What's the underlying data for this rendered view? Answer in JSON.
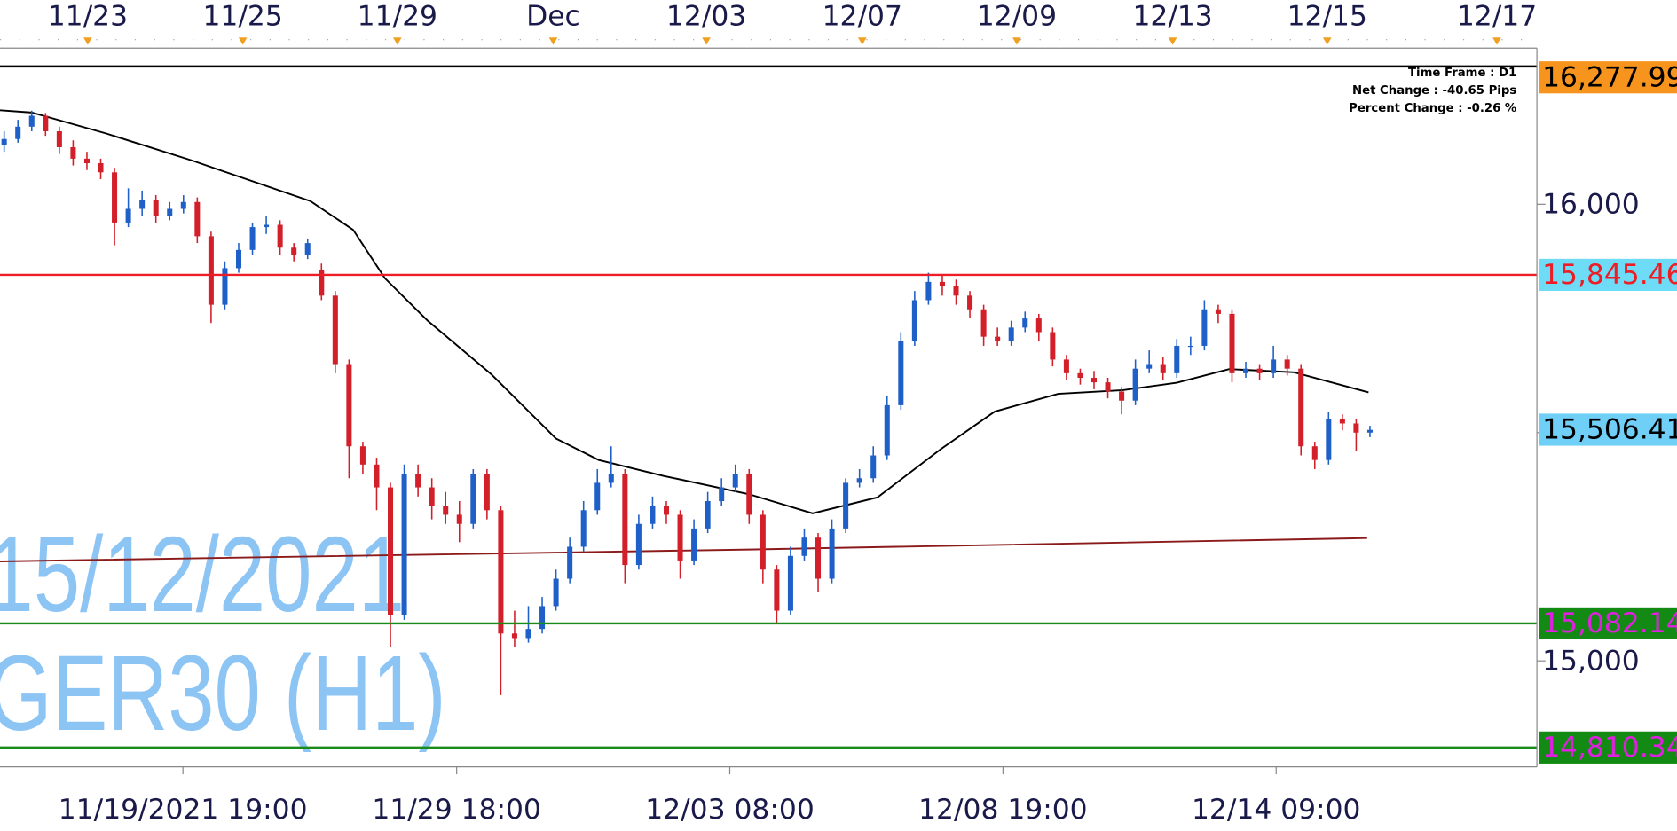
{
  "chart_data": {
    "type": "candlestick",
    "annotations": [
      "Time Frame : D1",
      "Net Change : -40.65 Pips",
      "Percent Change : -0.26 %"
    ],
    "watermark": [
      "15/12/2021",
      "GER30 (H1)"
    ],
    "up_color": "#1f5fc8",
    "down_color": "#d21f2a",
    "xlim": [
      -0.3,
      111.1
    ],
    "ylim": [
      14768,
      16342
    ],
    "yticks": [
      {
        "value": 15000,
        "label": "15,000"
      },
      {
        "value": 15500,
        "label": null
      },
      {
        "value": 16000,
        "label": "16,000"
      }
    ],
    "grid": true,
    "xticks": [
      {
        "value": 12.96,
        "label": "11/19/2021 19:00"
      },
      {
        "value": 32.8,
        "label": "11/29 18:00"
      },
      {
        "value": 52.6,
        "label": "12/03 08:00"
      },
      {
        "value": 72.4,
        "label": "12/08 19:00"
      },
      {
        "value": 92.2,
        "label": "12/14 09:00"
      }
    ],
    "top_xticks": [
      {
        "value": 6.06,
        "label": "11/23"
      },
      {
        "value": 17.3,
        "label": "11/25"
      },
      {
        "value": 28.5,
        "label": "11/29"
      },
      {
        "value": 39.8,
        "label": "Dec"
      },
      {
        "value": 50.9,
        "label": "12/03"
      },
      {
        "value": 62.2,
        "label": "12/07"
      },
      {
        "value": 73.4,
        "label": "12/09"
      },
      {
        "value": 84.7,
        "label": "12/13"
      },
      {
        "value": 95.9,
        "label": "12/15"
      },
      {
        "value": 108.2,
        "label": "12/17"
      }
    ],
    "levels": [
      {
        "value": 16302,
        "line_color": "#000000"
      },
      {
        "value": 16277.99,
        "label": "16,277.99",
        "label_bg": "#f7941d",
        "label_color": "#000000"
      },
      {
        "value": 15845.46,
        "label": "15,845.46",
        "line_color": "#ee1c24",
        "label_bg": "#6fdcf7",
        "label_color": "#ee1c24"
      },
      {
        "value": 15506.41,
        "label": "15,506.41",
        "label_bg": "#6fcff7",
        "label_color": "#000000"
      },
      {
        "value": 15082.14,
        "label": "15,082.14",
        "line_color": "#1a8a1a",
        "label_bg": "#138a13",
        "label_color": "#e020e0"
      },
      {
        "value": 14810.34,
        "label": "14,810.34",
        "line_color": "#1a8a1a",
        "label_bg": "#138a13",
        "label_color": "#e020e0"
      }
    ],
    "series": [
      {
        "color": "#000000",
        "x": [
          -0.3,
          2,
          7.4,
          13.6,
          22.2,
          25.3,
          27.6,
          30.7,
          35.3,
          40,
          43.1,
          47.8,
          54,
          58.6,
          63.3,
          67.9,
          71.8,
          76.4,
          81.1,
          85,
          88.8,
          93.5,
          98.9
        ],
        "values": [
          16206,
          16201,
          16155,
          16096,
          16007,
          15944,
          15838,
          15745,
          15628,
          15487,
          15440,
          15405,
          15365,
          15323,
          15358,
          15464,
          15546,
          15585,
          15593,
          15609,
          15639,
          15632,
          15588
        ]
      },
      {
        "color": "#8b1a1a",
        "x": [
          -0.3,
          54,
          98.8
        ],
        "values": [
          15218,
          15244,
          15269
        ]
      }
    ],
    "ohlc": [
      [
        16130,
        16160,
        16115,
        16143
      ],
      [
        16143,
        16185,
        16135,
        16170
      ],
      [
        16170,
        16205,
        16160,
        16194
      ],
      [
        16194,
        16200,
        16150,
        16160
      ],
      [
        16160,
        16170,
        16110,
        16125
      ],
      [
        16125,
        16140,
        16085,
        16100
      ],
      [
        16100,
        16115,
        16075,
        16090
      ],
      [
        16090,
        16100,
        16055,
        16070
      ],
      [
        16070,
        16080,
        15910,
        15960
      ],
      [
        15960,
        16035,
        15950,
        15990
      ],
      [
        15990,
        16030,
        15975,
        16010
      ],
      [
        16010,
        16020,
        15960,
        15975
      ],
      [
        15975,
        16005,
        15965,
        15990
      ],
      [
        15990,
        16020,
        15980,
        16005
      ],
      [
        16005,
        16015,
        15915,
        15930
      ],
      [
        15930,
        15940,
        15740,
        15780
      ],
      [
        15780,
        15875,
        15770,
        15860
      ],
      [
        15860,
        15915,
        15850,
        15900
      ],
      [
        15900,
        15960,
        15890,
        15950
      ],
      [
        15950,
        15975,
        15935,
        15955
      ],
      [
        15955,
        15965,
        15890,
        15905
      ],
      [
        15905,
        15915,
        15875,
        15890
      ],
      [
        15890,
        15925,
        15880,
        15915
      ],
      [
        15855,
        15870,
        15790,
        15800
      ],
      [
        15800,
        15810,
        15630,
        15650
      ],
      [
        15650,
        15660,
        15400,
        15470
      ],
      [
        15470,
        15480,
        15410,
        15430
      ],
      [
        15430,
        15445,
        15330,
        15380
      ],
      [
        15380,
        15390,
        15030,
        15100
      ],
      [
        15100,
        15430,
        15090,
        15410
      ],
      [
        15410,
        15430,
        15360,
        15380
      ],
      [
        15380,
        15400,
        15310,
        15340
      ],
      [
        15340,
        15370,
        15300,
        15320
      ],
      [
        15320,
        15350,
        15260,
        15300
      ],
      [
        15300,
        15420,
        15290,
        15410
      ],
      [
        15410,
        15420,
        15310,
        15330
      ],
      [
        15330,
        15340,
        14925,
        15060
      ],
      [
        15060,
        15110,
        15030,
        15050
      ],
      [
        15050,
        15120,
        15040,
        15070
      ],
      [
        15070,
        15140,
        15060,
        15120
      ],
      [
        15120,
        15200,
        15110,
        15180
      ],
      [
        15180,
        15270,
        15170,
        15250
      ],
      [
        15250,
        15350,
        15240,
        15330
      ],
      [
        15330,
        15420,
        15320,
        15390
      ],
      [
        15390,
        15470,
        15380,
        15410
      ],
      [
        15410,
        15420,
        15170,
        15210
      ],
      [
        15210,
        15320,
        15200,
        15300
      ],
      [
        15300,
        15360,
        15290,
        15340
      ],
      [
        15340,
        15350,
        15300,
        15320
      ],
      [
        15320,
        15330,
        15180,
        15220
      ],
      [
        15220,
        15310,
        15210,
        15290
      ],
      [
        15290,
        15370,
        15280,
        15350
      ],
      [
        15350,
        15400,
        15340,
        15380
      ],
      [
        15380,
        15430,
        15370,
        15410
      ],
      [
        15410,
        15420,
        15300,
        15320
      ],
      [
        15320,
        15330,
        15170,
        15200
      ],
      [
        15200,
        15210,
        15080,
        15110
      ],
      [
        15110,
        15250,
        15100,
        15230
      ],
      [
        15230,
        15290,
        15220,
        15270
      ],
      [
        15270,
        15280,
        15150,
        15180
      ],
      [
        15180,
        15310,
        15170,
        15290
      ],
      [
        15290,
        15400,
        15280,
        15390
      ],
      [
        15390,
        15420,
        15380,
        15400
      ],
      [
        15400,
        15470,
        15390,
        15450
      ],
      [
        15450,
        15580,
        15440,
        15560
      ],
      [
        15560,
        15720,
        15550,
        15700
      ],
      [
        15700,
        15810,
        15690,
        15790
      ],
      [
        15790,
        15850,
        15780,
        15830
      ],
      [
        15830,
        15845,
        15800,
        15820
      ],
      [
        15820,
        15835,
        15780,
        15800
      ],
      [
        15800,
        15810,
        15750,
        15770
      ],
      [
        15770,
        15780,
        15690,
        15710
      ],
      [
        15710,
        15730,
        15690,
        15700
      ],
      [
        15700,
        15745,
        15690,
        15730
      ],
      [
        15730,
        15765,
        15720,
        15750
      ],
      [
        15750,
        15760,
        15700,
        15720
      ],
      [
        15720,
        15730,
        15645,
        15660
      ],
      [
        15660,
        15670,
        15615,
        15630
      ],
      [
        15630,
        15640,
        15605,
        15620
      ],
      [
        15620,
        15635,
        15595,
        15610
      ],
      [
        15610,
        15620,
        15575,
        15590
      ],
      [
        15590,
        15600,
        15540,
        15570
      ],
      [
        15570,
        15660,
        15560,
        15640
      ],
      [
        15640,
        15680,
        15630,
        15650
      ],
      [
        15650,
        15665,
        15615,
        15630
      ],
      [
        15630,
        15705,
        15620,
        15690
      ],
      [
        15690,
        15710,
        15670,
        15690
      ],
      [
        15690,
        15790,
        15680,
        15770
      ],
      [
        15770,
        15780,
        15740,
        15760
      ],
      [
        15760,
        15770,
        15610,
        15630
      ],
      [
        15630,
        15655,
        15620,
        15640
      ],
      [
        15640,
        15650,
        15615,
        15630
      ],
      [
        15630,
        15690,
        15620,
        15660
      ],
      [
        15660,
        15670,
        15625,
        15640
      ],
      [
        15640,
        15650,
        15450,
        15470
      ],
      [
        15470,
        15480,
        15420,
        15440
      ],
      [
        15440,
        15545,
        15430,
        15530
      ],
      [
        15530,
        15540,
        15505,
        15520
      ],
      [
        15520,
        15530,
        15460,
        15500
      ],
      [
        15500,
        15515,
        15490,
        15506
      ]
    ]
  }
}
